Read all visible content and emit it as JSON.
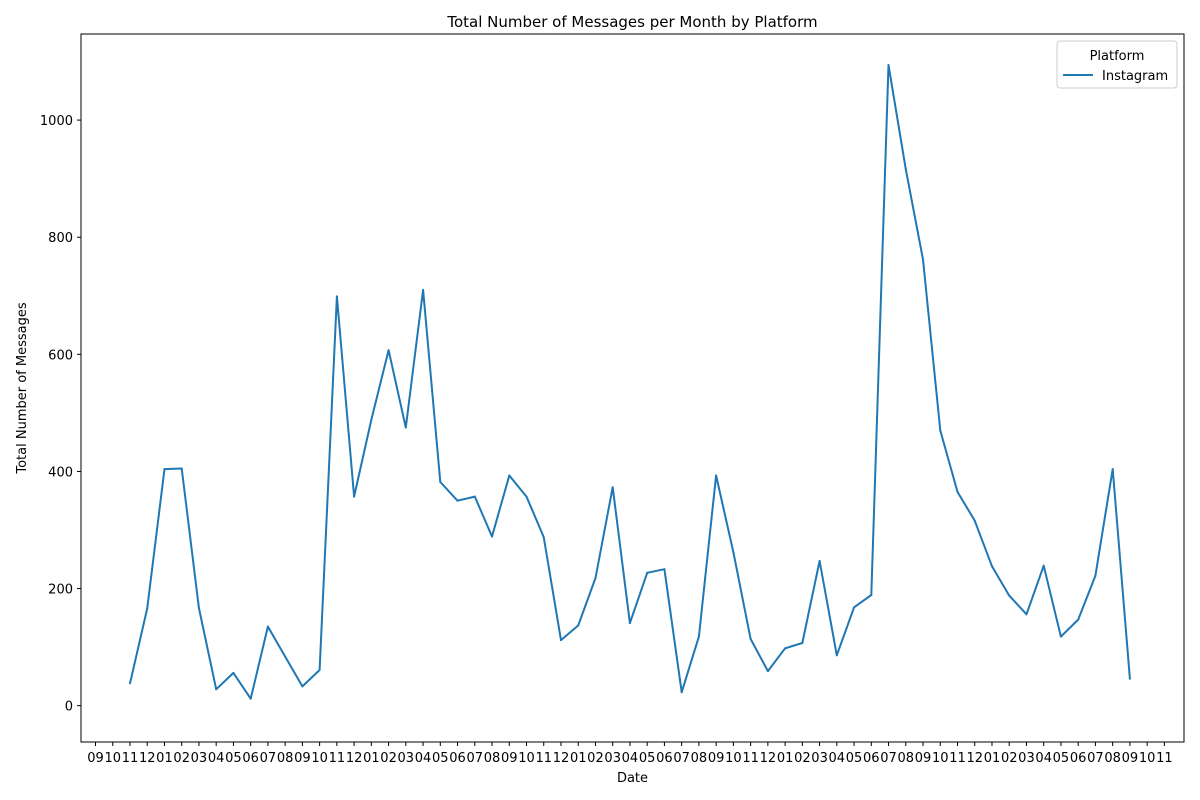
{
  "chart_data": {
    "type": "line",
    "title": "Total Number of Messages per Month by Platform",
    "xlabel": "Date",
    "ylabel": "Total Number of Messages",
    "x_tick_labels": [
      "09",
      "10",
      "11",
      "12",
      "01",
      "02",
      "03",
      "04",
      "05",
      "06",
      "07",
      "08",
      "09",
      "10",
      "11",
      "12",
      "01",
      "02",
      "03",
      "04",
      "05",
      "06",
      "07",
      "08",
      "09",
      "10",
      "11",
      "12",
      "01",
      "02",
      "03",
      "04",
      "05",
      "06",
      "07",
      "08",
      "09",
      "10",
      "11",
      "12",
      "01",
      "02",
      "03",
      "04",
      "05",
      "06",
      "07",
      "08",
      "09",
      "10",
      "11",
      "12",
      "01",
      "02",
      "03",
      "04",
      "05",
      "06",
      "07",
      "08",
      "09",
      "10",
      "11"
    ],
    "y_ticks": [
      0,
      200,
      400,
      600,
      800,
      1000
    ],
    "ylim": [
      -62,
      1147
    ],
    "grid": false,
    "legend": {
      "title": "Platform",
      "placement": "top-right"
    },
    "series": [
      {
        "name": "Instagram",
        "color": "#1f77b4",
        "points": [
          {
            "x": "11",
            "y": 38
          },
          {
            "x": "12",
            "y": 166
          },
          {
            "x": "01",
            "y": 404
          },
          {
            "x": "02",
            "y": 405
          },
          {
            "x": "03",
            "y": 167
          },
          {
            "x": "04",
            "y": 28
          },
          {
            "x": "05",
            "y": 56
          },
          {
            "x": "06",
            "y": 12
          },
          {
            "x": "07",
            "y": 135
          },
          {
            "x": "08",
            "y": 84
          },
          {
            "x": "09",
            "y": 33
          },
          {
            "x": "10",
            "y": 61
          },
          {
            "x": "11",
            "y": 699
          },
          {
            "x": "12",
            "y": 357
          },
          {
            "x": "01",
            "y": 488
          },
          {
            "x": "02",
            "y": 607
          },
          {
            "x": "03",
            "y": 475
          },
          {
            "x": "04",
            "y": 710
          },
          {
            "x": "05",
            "y": 382
          },
          {
            "x": "06",
            "y": 350
          },
          {
            "x": "07",
            "y": 357
          },
          {
            "x": "08",
            "y": 289
          },
          {
            "x": "09",
            "y": 393
          },
          {
            "x": "10",
            "y": 357
          },
          {
            "x": "11",
            "y": 288
          },
          {
            "x": "12",
            "y": 112
          },
          {
            "x": "01",
            "y": 137
          },
          {
            "x": "02",
            "y": 218
          },
          {
            "x": "03",
            "y": 373
          },
          {
            "x": "04",
            "y": 141
          },
          {
            "x": "05",
            "y": 227
          },
          {
            "x": "06",
            "y": 233
          },
          {
            "x": "07",
            "y": 23
          },
          {
            "x": "08",
            "y": 118
          },
          {
            "x": "09",
            "y": 393
          },
          {
            "x": "10",
            "y": 262
          },
          {
            "x": "11",
            "y": 114
          },
          {
            "x": "12",
            "y": 59
          },
          {
            "x": "01",
            "y": 98
          },
          {
            "x": "02",
            "y": 107
          },
          {
            "x": "03",
            "y": 247
          },
          {
            "x": "04",
            "y": 86
          },
          {
            "x": "05",
            "y": 168
          },
          {
            "x": "06",
            "y": 189
          },
          {
            "x": "07",
            "y": 1094
          },
          {
            "x": "08",
            "y": 916
          },
          {
            "x": "09",
            "y": 762
          },
          {
            "x": "10",
            "y": 470
          },
          {
            "x": "11",
            "y": 365
          },
          {
            "x": "12",
            "y": 316
          },
          {
            "x": "01",
            "y": 238
          },
          {
            "x": "02",
            "y": 188
          },
          {
            "x": "03",
            "y": 156
          },
          {
            "x": "04",
            "y": 239
          },
          {
            "x": "05",
            "y": 118
          },
          {
            "x": "06",
            "y": 147
          },
          {
            "x": "07",
            "y": 222
          },
          {
            "x": "08",
            "y": 404
          },
          {
            "x": "09",
            "y": 46
          }
        ]
      }
    ]
  }
}
